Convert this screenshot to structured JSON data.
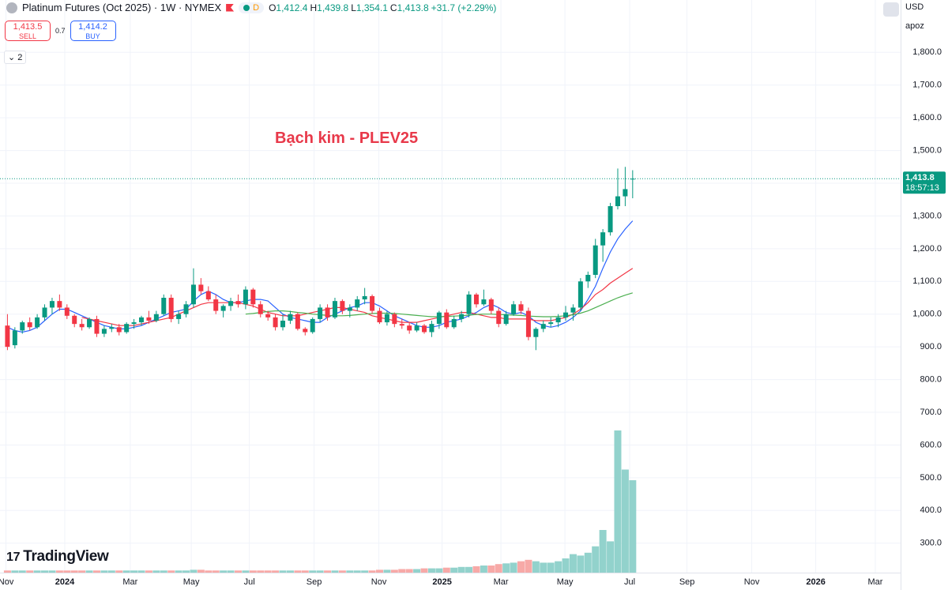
{
  "header": {
    "symbol": "Platinum Futures (Oct 2025) · 1W · NYMEX",
    "flag": "D",
    "ohlc_labels": [
      "O",
      "H",
      "L",
      "C"
    ],
    "ohlc_values": [
      "1,412.4",
      "1,439.8",
      "1,354.1",
      "1,413.8"
    ],
    "change": "+31.7 (+2.29%)",
    "sell_price": "1,413.5",
    "sell": "SELL",
    "spread": "0.7",
    "buy_price": "1,414.2",
    "buy": "BUY",
    "indicators": "2",
    "currency": "USD",
    "scale_menu": "apoz",
    "logo": "TradingView"
  },
  "chart_data": {
    "type": "candlestick",
    "annotation": "Bạch kim - PLEV25",
    "annotation_color": "#e8394a",
    "up_color": "#089981",
    "down_color": "#f23645",
    "volume_up_color": "#92d2cc",
    "volume_down_color": "#f7a9a7",
    "grid": true,
    "xlim": [
      -1,
      120
    ],
    "xticks": [
      {
        "value": -0.2,
        "label": "Nov"
      },
      {
        "value": 7.7,
        "label": "2024"
      },
      {
        "value": 16.5,
        "label": "Mar"
      },
      {
        "value": 24.7,
        "label": "May"
      },
      {
        "value": 32.5,
        "label": "Jul"
      },
      {
        "value": 41.2,
        "label": "Sep"
      },
      {
        "value": 49.9,
        "label": "Nov"
      },
      {
        "value": 58.4,
        "label": "2025"
      },
      {
        "value": 66.3,
        "label": "Mar"
      },
      {
        "value": 74.9,
        "label": "May"
      },
      {
        "value": 83.6,
        "label": "Jul"
      },
      {
        "value": 91.3,
        "label": "Sep"
      },
      {
        "value": 100,
        "label": "Nov"
      },
      {
        "value": 108.6,
        "label": "2026"
      },
      {
        "value": 116.6,
        "label": "Mar"
      }
    ],
    "ylim": [
      210,
      1960
    ],
    "yticks": [
      {
        "value": 300,
        "label": "300.0"
      },
      {
        "value": 400,
        "label": "400.0"
      },
      {
        "value": 500,
        "label": "500.0"
      },
      {
        "value": 600,
        "label": "600.0"
      },
      {
        "value": 700,
        "label": "700.0"
      },
      {
        "value": 800,
        "label": "800.0"
      },
      {
        "value": 900,
        "label": "900.0"
      },
      {
        "value": 1000,
        "label": "1,000.0"
      },
      {
        "value": 1100,
        "label": "1,100.0"
      },
      {
        "value": 1200,
        "label": "1,200.0"
      },
      {
        "value": 1300,
        "label": "1,300.0"
      },
      {
        "value": 1400,
        "label": "1,400.0"
      },
      {
        "value": 1500,
        "label": "1,500.0"
      },
      {
        "value": 1600,
        "label": "1,600.0"
      },
      {
        "value": 1700,
        "label": "1,700.0"
      },
      {
        "value": 1800,
        "label": "1,800.0"
      }
    ],
    "price_line": {
      "value": 1413.8,
      "label": "1,413.8",
      "countdown": "18:57:13",
      "color": "#089981"
    },
    "ohlc": [
      [
        965,
        1000,
        890,
        900
      ],
      [
        905,
        960,
        895,
        950
      ],
      [
        950,
        980,
        940,
        975
      ],
      [
        975,
        990,
        950,
        960
      ],
      [
        960,
        1000,
        955,
        990
      ],
      [
        990,
        1030,
        980,
        1020
      ],
      [
        1020,
        1050,
        1000,
        1040
      ],
      [
        1040,
        1060,
        1010,
        1020
      ],
      [
        1020,
        1030,
        985,
        995
      ],
      [
        995,
        1000,
        960,
        970
      ],
      [
        970,
        985,
        950,
        960
      ],
      [
        960,
        990,
        955,
        985
      ],
      [
        985,
        995,
        930,
        940
      ],
      [
        940,
        965,
        930,
        955
      ],
      [
        955,
        970,
        945,
        960
      ],
      [
        960,
        970,
        935,
        945
      ],
      [
        945,
        975,
        940,
        970
      ],
      [
        970,
        985,
        955,
        975
      ],
      [
        975,
        995,
        965,
        990
      ],
      [
        990,
        1010,
        970,
        980
      ],
      [
        980,
        1010,
        975,
        1000
      ],
      [
        1000,
        1060,
        995,
        1050
      ],
      [
        1050,
        1060,
        975,
        985
      ],
      [
        985,
        1010,
        970,
        1000
      ],
      [
        1000,
        1040,
        990,
        1030
      ],
      [
        1030,
        1140,
        1020,
        1090
      ],
      [
        1090,
        1110,
        1060,
        1070
      ],
      [
        1070,
        1085,
        1040,
        1045
      ],
      [
        1045,
        1060,
        1000,
        1010
      ],
      [
        1010,
        1030,
        990,
        1025
      ],
      [
        1025,
        1050,
        1010,
        1040
      ],
      [
        1040,
        1060,
        1020,
        1030
      ],
      [
        1030,
        1085,
        1015,
        1075
      ],
      [
        1075,
        1080,
        1020,
        1030
      ],
      [
        1030,
        1040,
        990,
        1000
      ],
      [
        1000,
        1010,
        980,
        990
      ],
      [
        990,
        1000,
        950,
        960
      ],
      [
        960,
        1000,
        950,
        980
      ],
      [
        980,
        1010,
        970,
        1000
      ],
      [
        1000,
        1005,
        950,
        955
      ],
      [
        955,
        960,
        935,
        945
      ],
      [
        945,
        990,
        940,
        985
      ],
      [
        985,
        1030,
        975,
        1020
      ],
      [
        1020,
        1030,
        980,
        990
      ],
      [
        990,
        1050,
        985,
        1040
      ],
      [
        1040,
        1045,
        1000,
        1010
      ],
      [
        1010,
        1030,
        990,
        1020
      ],
      [
        1020,
        1055,
        1010,
        1045
      ],
      [
        1045,
        1080,
        1030,
        1055
      ],
      [
        1055,
        1060,
        1000,
        1010
      ],
      [
        1010,
        1020,
        970,
        975
      ],
      [
        975,
        1010,
        965,
        1000
      ],
      [
        1000,
        1005,
        960,
        970
      ],
      [
        970,
        985,
        955,
        965
      ],
      [
        965,
        975,
        940,
        950
      ],
      [
        950,
        975,
        945,
        965
      ],
      [
        965,
        970,
        940,
        945
      ],
      [
        945,
        980,
        930,
        970
      ],
      [
        970,
        1010,
        955,
        1005
      ],
      [
        1005,
        1015,
        955,
        960
      ],
      [
        960,
        995,
        955,
        985
      ],
      [
        985,
        1010,
        975,
        1000
      ],
      [
        1000,
        1070,
        990,
        1060
      ],
      [
        1060,
        1065,
        1020,
        1030
      ],
      [
        1030,
        1075,
        1025,
        1045
      ],
      [
        1045,
        1050,
        1000,
        1010
      ],
      [
        1010,
        1020,
        960,
        970
      ],
      [
        970,
        1010,
        965,
        1000
      ],
      [
        1000,
        1040,
        995,
        1030
      ],
      [
        1030,
        1040,
        1000,
        1010
      ],
      [
        1010,
        1020,
        920,
        930
      ],
      [
        930,
        960,
        890,
        955
      ],
      [
        955,
        980,
        945,
        970
      ],
      [
        970,
        990,
        960,
        975
      ],
      [
        975,
        1000,
        960,
        990
      ],
      [
        990,
        1025,
        980,
        1005
      ],
      [
        1005,
        1030,
        980,
        1020
      ],
      [
        1020,
        1110,
        1010,
        1100
      ],
      [
        1100,
        1130,
        1080,
        1120
      ],
      [
        1120,
        1230,
        1110,
        1210
      ],
      [
        1210,
        1260,
        1160,
        1250
      ],
      [
        1250,
        1340,
        1240,
        1330
      ],
      [
        1330,
        1445,
        1320,
        1360
      ],
      [
        1360,
        1450,
        1330,
        1382.1
      ],
      [
        1412.4,
        1439.8,
        1354.1,
        1413.8
      ]
    ],
    "volume_lim": [
      0,
      300
    ],
    "volume": [
      3,
      3,
      3,
      3,
      3,
      3,
      3,
      3,
      3,
      3,
      3,
      3,
      3,
      3,
      3,
      3,
      3,
      3,
      3,
      3,
      3,
      3,
      3,
      3,
      3,
      4,
      4,
      3,
      3,
      3,
      3,
      3,
      3,
      3,
      3,
      3,
      3,
      3,
      3,
      3,
      3,
      3,
      3,
      3,
      3,
      3,
      3,
      3,
      3,
      3,
      4,
      4,
      4,
      5,
      5,
      5,
      6,
      6,
      6,
      7,
      7,
      8,
      8,
      9,
      10,
      10,
      12,
      13,
      14,
      16,
      18,
      16,
      14,
      14,
      16,
      20,
      26,
      24,
      28,
      37,
      60,
      44,
      200,
      145,
      130
    ],
    "series": [
      {
        "color": "#2962ff",
        "values": [
          960,
          950,
          945,
          950,
          960,
          980,
          1000,
          1015,
          1015,
          1005,
          995,
          985,
          975,
          965,
          960,
          955,
          955,
          960,
          965,
          975,
          985,
          995,
          1005,
          1010,
          1015,
          1040,
          1060,
          1070,
          1060,
          1045,
          1035,
          1035,
          1040,
          1045,
          1045,
          1040,
          1020,
          1000,
          990,
          985,
          980,
          975,
          975,
          990,
          1000,
          1010,
          1020,
          1025,
          1035,
          1035,
          1025,
          1010,
          995,
          985,
          975,
          965,
          960,
          960,
          965,
          975,
          980,
          985,
          995,
          1005,
          1020,
          1030,
          1020,
          1005,
          1000,
          1005,
          995,
          975,
          965,
          960,
          965,
          975,
          990,
          1010,
          1045,
          1085,
          1140,
          1190,
          1230,
          1260,
          1285
        ]
      },
      {
        "color": "#f23645",
        "values": [
          null,
          null,
          null,
          null,
          null,
          null,
          null,
          null,
          null,
          null,
          990,
          985,
          980,
          975,
          970,
          965,
          965,
          965,
          970,
          975,
          980,
          985,
          990,
          1000,
          1010,
          1020,
          1030,
          1035,
          1035,
          1035,
          1035,
          1035,
          1030,
          1025,
          1015,
          1005,
          1000,
          995,
          995,
          995,
          1000,
          1005,
          1010,
          1015,
          1020,
          1020,
          1015,
          1010,
          1005,
          995,
          990,
          985,
          980,
          975,
          975,
          975,
          980,
          985,
          990,
          995,
          1000,
          1005,
          1005,
          1000,
          995,
          990,
          990,
          985,
          985,
          985,
          985,
          980,
          980,
          980,
          985,
          990,
          1000,
          1015,
          1035,
          1060,
          1075,
          1095,
          1110,
          1125,
          1140
        ]
      },
      {
        "color": "#4caf50",
        "values": [
          null,
          null,
          null,
          null,
          null,
          null,
          null,
          null,
          null,
          null,
          null,
          null,
          null,
          null,
          null,
          null,
          null,
          null,
          null,
          null,
          null,
          null,
          null,
          null,
          null,
          null,
          null,
          null,
          null,
          null,
          null,
          null,
          1000,
          1002,
          1005,
          1008,
          1010,
          1010,
          1008,
          1005,
          1003,
          1000,
          998,
          996,
          995,
          995,
          996,
          998,
          1000,
          1002,
          1003,
          1003,
          1002,
          1000,
          998,
          996,
          994,
          992,
          992,
          993,
          994,
          995,
          997,
          999,
          1000,
          1000,
          999,
          998,
          997,
          996,
          994,
          993,
          992,
          992,
          993,
          995,
          998,
          1003,
          1010,
          1020,
          1030,
          1040,
          1050,
          1058,
          1065
        ]
      }
    ]
  }
}
